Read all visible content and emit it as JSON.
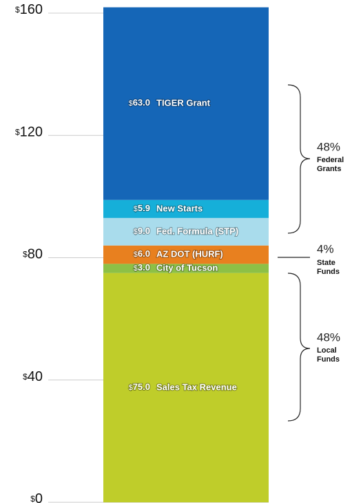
{
  "chart_data": {
    "type": "stacked-bar",
    "series": [
      {
        "name": "Sales Tax Revenue",
        "color": "#bfcd2a",
        "values": [
          75.0
        ],
        "value_labels": [
          "$75.0"
        ]
      },
      {
        "name": "City of Tucson",
        "color": "#8dc046",
        "values": [
          3.0
        ],
        "value_labels": [
          "$3.0"
        ]
      },
      {
        "name": "AZ DOT (HURF)",
        "color": "#e8801f",
        "values": [
          6.0
        ],
        "value_labels": [
          "$6.0"
        ]
      },
      {
        "name": "Fed. Formula (STP)",
        "color": "#a9dcec",
        "values": [
          9.0
        ],
        "value_labels": [
          "$9.0"
        ]
      },
      {
        "name": "New Starts",
        "color": "#16afd9",
        "values": [
          5.9
        ],
        "value_labels": [
          "$5.9"
        ]
      },
      {
        "name": "TIGER Grant",
        "color": "#1566b7",
        "values": [
          63.0
        ],
        "value_labels": [
          "$63.0"
        ]
      }
    ],
    "ylim": [
      0,
      160
    ],
    "yticks": [
      {
        "value": 0,
        "label": "$0"
      },
      {
        "value": 40,
        "label": "$40"
      },
      {
        "value": 80,
        "label": "$80"
      },
      {
        "value": 120,
        "label": "$120"
      },
      {
        "value": 160,
        "label": "$160"
      }
    ],
    "grid": true,
    "annotations": [
      {
        "percent": "48%",
        "text": "Federal Grants"
      },
      {
        "percent": "4%",
        "text": "State Funds"
      },
      {
        "percent": "48%",
        "text": "Local Funds"
      }
    ]
  }
}
